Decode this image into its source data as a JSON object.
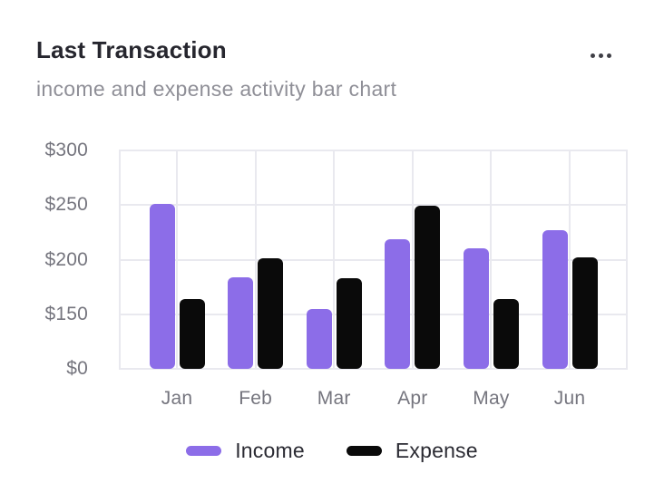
{
  "card": {
    "title": "Last Transaction",
    "subtitle": "income and expense activity bar chart",
    "menu_icon": "ellipsis-horizontal-icon"
  },
  "chart_data": {
    "type": "bar",
    "categories": [
      "Jan",
      "Feb",
      "Mar",
      "Apr",
      "May",
      "Jun"
    ],
    "series": [
      {
        "name": "Income",
        "color": "#8c6de8",
        "values": [
          251,
          184,
          155,
          219,
          210,
          227
        ]
      },
      {
        "name": "Expense",
        "color": "#0a0a0a",
        "values": [
          164,
          201,
          183,
          249,
          164,
          202
        ]
      }
    ],
    "title": "Last Transaction",
    "subtitle": "income and expense activity bar chart",
    "xlabel": "",
    "ylabel": "",
    "y_axis": {
      "ticks": [
        0,
        150,
        200,
        250,
        300
      ],
      "tick_labels": [
        "$0",
        "$150",
        "$200",
        "$250",
        "$300"
      ],
      "equal_tick_spacing": true,
      "currency": "USD"
    },
    "grid": true,
    "legend_position": "bottom"
  },
  "colors": {
    "income": "#8c6de8",
    "expense": "#0a0a0a",
    "grid": "#e9e9ef",
    "title_text": "#26262e",
    "subtitle_text": "#8f8f97",
    "axis_text": "#75757e",
    "legend_text": "#2b2b33"
  }
}
